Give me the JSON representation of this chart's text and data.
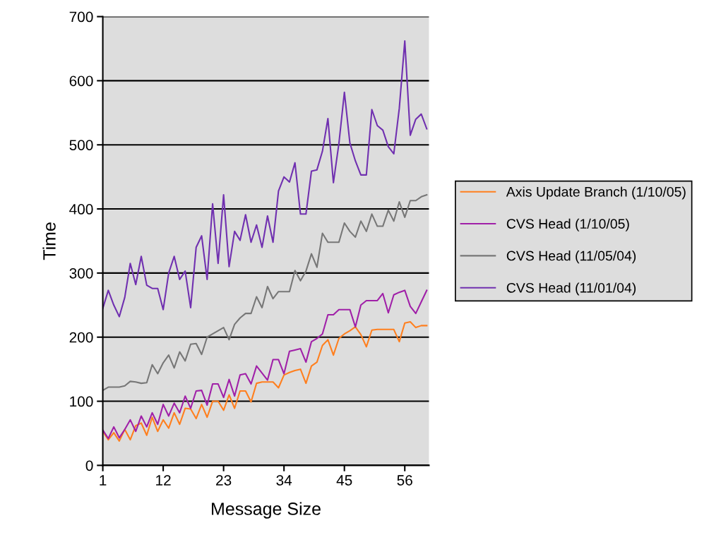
{
  "chart_data": {
    "type": "line",
    "xlabel": "Message Size",
    "ylabel": "Time",
    "categories": [
      "1",
      null,
      null,
      null,
      null,
      null,
      null,
      null,
      null,
      null,
      null,
      "12",
      null,
      null,
      null,
      null,
      null,
      null,
      null,
      null,
      null,
      null,
      "23",
      null,
      null,
      null,
      null,
      null,
      null,
      null,
      null,
      null,
      null,
      "34",
      null,
      null,
      null,
      null,
      null,
      null,
      null,
      null,
      null,
      null,
      "45",
      null,
      null,
      null,
      null,
      null,
      null,
      null,
      null,
      null,
      null,
      "56",
      null,
      null,
      null,
      null
    ],
    "series": [
      {
        "name": "Axis Update Branch (1/10/05)",
        "color": "#ff7f1e",
        "values": [
          53,
          40,
          51,
          38,
          56,
          40,
          62,
          66,
          47,
          75,
          53,
          71,
          58,
          82,
          64,
          89,
          88,
          73,
          95,
          75,
          100,
          100,
          86,
          110,
          89,
          116,
          116,
          99,
          128,
          130,
          130,
          130,
          121,
          141,
          145,
          148,
          150,
          128,
          155,
          161,
          187,
          196,
          172,
          198,
          205,
          210,
          216,
          204,
          185,
          211,
          212,
          212,
          212,
          212,
          193,
          222,
          224,
          215,
          218,
          218
        ]
      },
      {
        "name": "CVS Head (1/10/05)",
        "color": "#a020a8",
        "values": [
          55,
          42,
          60,
          43,
          56,
          71,
          53,
          77,
          60,
          82,
          64,
          95,
          77,
          97,
          82,
          108,
          89,
          116,
          117,
          94,
          127,
          127,
          106,
          134,
          108,
          141,
          143,
          127,
          155,
          144,
          133,
          165,
          165,
          143,
          178,
          180,
          182,
          161,
          193,
          198,
          205,
          235,
          235,
          243,
          243,
          243,
          216,
          250,
          257,
          257,
          257,
          268,
          238,
          266,
          270,
          273,
          248,
          237,
          255,
          273
        ]
      },
      {
        "name": "CVS Head (11/05/04)",
        "color": "#777777",
        "values": [
          117,
          122,
          122,
          122,
          124,
          131,
          130,
          128,
          129,
          157,
          143,
          160,
          172,
          152,
          177,
          163,
          189,
          190,
          173,
          200,
          205,
          210,
          215,
          196,
          220,
          230,
          237,
          237,
          263,
          246,
          279,
          260,
          271,
          271,
          271,
          304,
          288,
          303,
          330,
          309,
          362,
          348,
          348,
          348,
          378,
          365,
          356,
          381,
          365,
          392,
          373,
          373,
          398,
          381,
          411,
          387,
          413,
          413,
          419,
          422
        ]
      },
      {
        "name": "CVS Head (11/01/04)",
        "color": "#7030b0",
        "values": [
          245,
          273,
          250,
          232,
          262,
          315,
          282,
          326,
          281,
          276,
          276,
          243,
          300,
          326,
          290,
          303,
          246,
          340,
          358,
          290,
          408,
          315,
          422,
          310,
          365,
          351,
          391,
          348,
          375,
          340,
          389,
          348,
          428,
          450,
          442,
          472,
          392,
          392,
          459,
          461,
          490,
          541,
          441,
          502,
          582,
          503,
          475,
          453,
          453,
          555,
          530,
          523,
          497,
          486,
          557,
          662,
          515,
          540,
          548,
          525
        ]
      }
    ],
    "ylim": [
      0,
      700
    ],
    "yticks": [
      0,
      100,
      200,
      300,
      400,
      500,
      600,
      700
    ],
    "grid": "y",
    "legend": "right",
    "line_style": "solid",
    "marker": "none"
  }
}
